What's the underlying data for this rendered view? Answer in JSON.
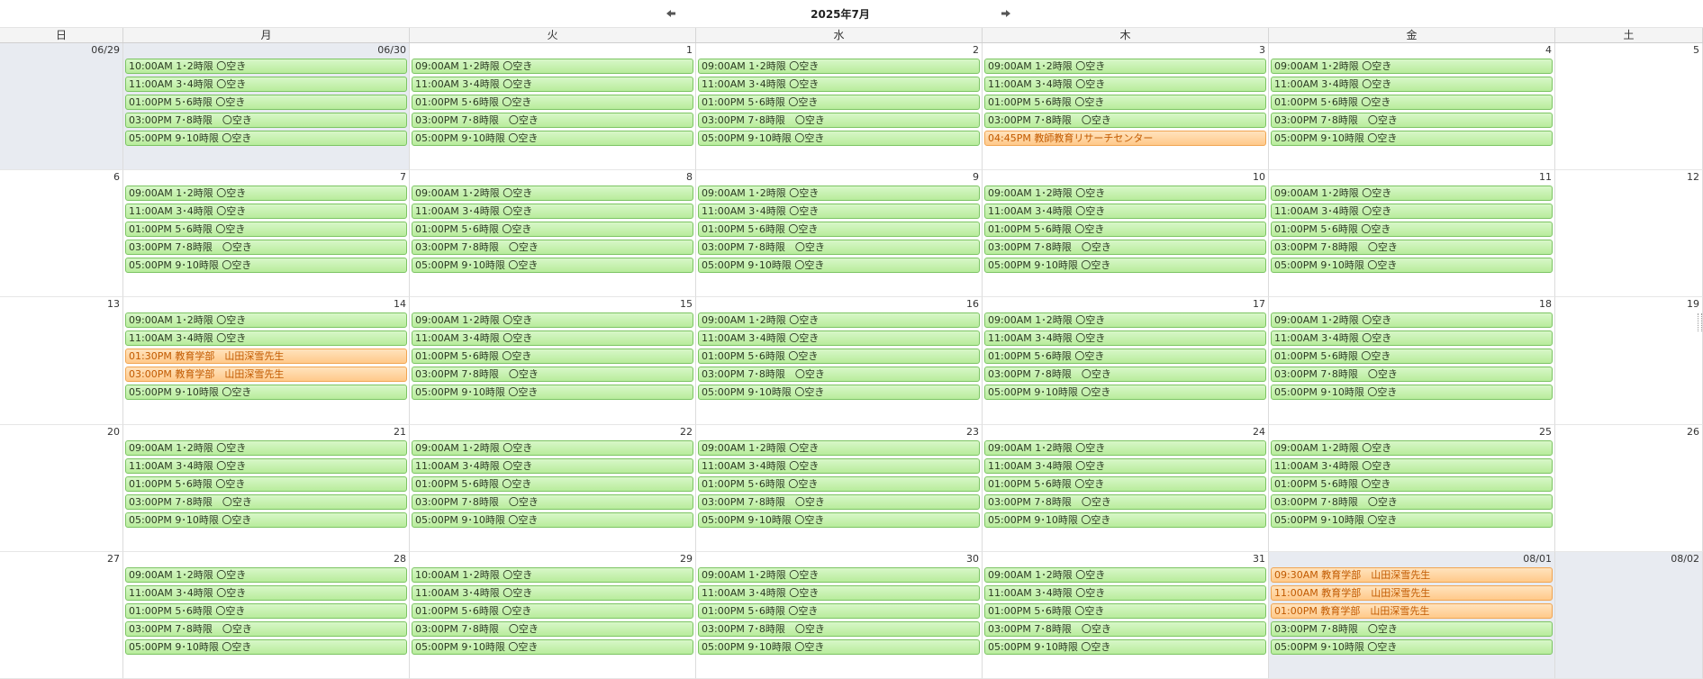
{
  "title": "2025年7月",
  "nav": {
    "prev_icon": "arrow-left-icon",
    "next_icon": "arrow-right-icon"
  },
  "colors": {
    "free_bg": "#c8f2b2",
    "free_border": "#7cc463",
    "booked_bg": "#ffd6a3",
    "booked_border": "#f0a552",
    "booked_text": "#c25a00",
    "other_month_bg": "#e8ebf1"
  },
  "day_names": [
    "日",
    "月",
    "火",
    "水",
    "木",
    "金",
    "土"
  ],
  "weeks": [
    {
      "days": [
        {
          "date": "06/29",
          "other_month": true,
          "events": []
        },
        {
          "date": "06/30",
          "other_month": true,
          "events": [
            {
              "text": "10:00AM 1･2時限 〇空き",
              "type": "free"
            },
            {
              "text": "11:00AM 3･4時限 〇空き",
              "type": "free"
            },
            {
              "text": "01:00PM 5･6時限 〇空き",
              "type": "free"
            },
            {
              "text": "03:00PM 7･8時限　〇空き",
              "type": "free"
            },
            {
              "text": "05:00PM 9･10時限 〇空き",
              "type": "free"
            }
          ]
        },
        {
          "date": "1",
          "other_month": false,
          "events": [
            {
              "text": "09:00AM 1･2時限 〇空き",
              "type": "free"
            },
            {
              "text": "11:00AM 3･4時限 〇空き",
              "type": "free"
            },
            {
              "text": "01:00PM 5･6時限 〇空き",
              "type": "free"
            },
            {
              "text": "03:00PM 7･8時限　〇空き",
              "type": "free"
            },
            {
              "text": "05:00PM 9･10時限 〇空き",
              "type": "free"
            }
          ]
        },
        {
          "date": "2",
          "other_month": false,
          "events": [
            {
              "text": "09:00AM 1･2時限 〇空き",
              "type": "free"
            },
            {
              "text": "11:00AM 3･4時限 〇空き",
              "type": "free"
            },
            {
              "text": "01:00PM 5･6時限 〇空き",
              "type": "free"
            },
            {
              "text": "03:00PM 7･8時限　〇空き",
              "type": "free"
            },
            {
              "text": "05:00PM 9･10時限 〇空き",
              "type": "free"
            }
          ]
        },
        {
          "date": "3",
          "other_month": false,
          "events": [
            {
              "text": "09:00AM 1･2時限 〇空き",
              "type": "free"
            },
            {
              "text": "11:00AM 3･4時限 〇空き",
              "type": "free"
            },
            {
              "text": "01:00PM 5･6時限 〇空き",
              "type": "free"
            },
            {
              "text": "03:00PM 7･8時限　〇空き",
              "type": "free"
            },
            {
              "text": "04:45PM 教師教育リサーチセンター",
              "type": "booked"
            }
          ]
        },
        {
          "date": "4",
          "other_month": false,
          "events": [
            {
              "text": "09:00AM 1･2時限 〇空き",
              "type": "free"
            },
            {
              "text": "11:00AM 3･4時限 〇空き",
              "type": "free"
            },
            {
              "text": "01:00PM 5･6時限 〇空き",
              "type": "free"
            },
            {
              "text": "03:00PM 7･8時限　〇空き",
              "type": "free"
            },
            {
              "text": "05:00PM 9･10時限 〇空き",
              "type": "free"
            }
          ]
        },
        {
          "date": "5",
          "other_month": false,
          "events": []
        }
      ]
    },
    {
      "days": [
        {
          "date": "6",
          "other_month": false,
          "events": []
        },
        {
          "date": "7",
          "other_month": false,
          "events": [
            {
              "text": "09:00AM 1･2時限 〇空き",
              "type": "free"
            },
            {
              "text": "11:00AM 3･4時限 〇空き",
              "type": "free"
            },
            {
              "text": "01:00PM 5･6時限 〇空き",
              "type": "free"
            },
            {
              "text": "03:00PM 7･8時限　〇空き",
              "type": "free"
            },
            {
              "text": "05:00PM 9･10時限 〇空き",
              "type": "free"
            }
          ]
        },
        {
          "date": "8",
          "other_month": false,
          "events": [
            {
              "text": "09:00AM 1･2時限 〇空き",
              "type": "free"
            },
            {
              "text": "11:00AM 3･4時限 〇空き",
              "type": "free"
            },
            {
              "text": "01:00PM 5･6時限 〇空き",
              "type": "free"
            },
            {
              "text": "03:00PM 7･8時限　〇空き",
              "type": "free"
            },
            {
              "text": "05:00PM 9･10時限 〇空き",
              "type": "free"
            }
          ]
        },
        {
          "date": "9",
          "other_month": false,
          "events": [
            {
              "text": "09:00AM 1･2時限 〇空き",
              "type": "free"
            },
            {
              "text": "11:00AM 3･4時限 〇空き",
              "type": "free"
            },
            {
              "text": "01:00PM 5･6時限 〇空き",
              "type": "free"
            },
            {
              "text": "03:00PM 7･8時限　〇空き",
              "type": "free"
            },
            {
              "text": "05:00PM 9･10時限 〇空き",
              "type": "free"
            }
          ]
        },
        {
          "date": "10",
          "other_month": false,
          "events": [
            {
              "text": "09:00AM 1･2時限 〇空き",
              "type": "free"
            },
            {
              "text": "11:00AM 3･4時限 〇空き",
              "type": "free"
            },
            {
              "text": "01:00PM 5･6時限 〇空き",
              "type": "free"
            },
            {
              "text": "03:00PM 7･8時限　〇空き",
              "type": "free"
            },
            {
              "text": "05:00PM 9･10時限 〇空き",
              "type": "free"
            }
          ]
        },
        {
          "date": "11",
          "other_month": false,
          "events": [
            {
              "text": "09:00AM 1･2時限 〇空き",
              "type": "free"
            },
            {
              "text": "11:00AM 3･4時限 〇空き",
              "type": "free"
            },
            {
              "text": "01:00PM 5･6時限 〇空き",
              "type": "free"
            },
            {
              "text": "03:00PM 7･8時限　〇空き",
              "type": "free"
            },
            {
              "text": "05:00PM 9･10時限 〇空き",
              "type": "free"
            }
          ]
        },
        {
          "date": "12",
          "other_month": false,
          "events": []
        }
      ]
    },
    {
      "days": [
        {
          "date": "13",
          "other_month": false,
          "events": []
        },
        {
          "date": "14",
          "other_month": false,
          "events": [
            {
              "text": "09:00AM 1･2時限 〇空き",
              "type": "free"
            },
            {
              "text": "11:00AM 3･4時限 〇空き",
              "type": "free"
            },
            {
              "text": "01:30PM 教育学部　山田深雪先生",
              "type": "booked"
            },
            {
              "text": "03:00PM 教育学部　山田深雪先生",
              "type": "booked"
            },
            {
              "text": "05:00PM 9･10時限 〇空き",
              "type": "free"
            }
          ]
        },
        {
          "date": "15",
          "other_month": false,
          "events": [
            {
              "text": "09:00AM 1･2時限 〇空き",
              "type": "free"
            },
            {
              "text": "11:00AM 3･4時限 〇空き",
              "type": "free"
            },
            {
              "text": "01:00PM 5･6時限 〇空き",
              "type": "free"
            },
            {
              "text": "03:00PM 7･8時限　〇空き",
              "type": "free"
            },
            {
              "text": "05:00PM 9･10時限 〇空き",
              "type": "free"
            }
          ]
        },
        {
          "date": "16",
          "other_month": false,
          "events": [
            {
              "text": "09:00AM 1･2時限 〇空き",
              "type": "free"
            },
            {
              "text": "11:00AM 3･4時限 〇空き",
              "type": "free"
            },
            {
              "text": "01:00PM 5･6時限 〇空き",
              "type": "free"
            },
            {
              "text": "03:00PM 7･8時限　〇空き",
              "type": "free"
            },
            {
              "text": "05:00PM 9･10時限 〇空き",
              "type": "free"
            }
          ]
        },
        {
          "date": "17",
          "other_month": false,
          "events": [
            {
              "text": "09:00AM 1･2時限 〇空き",
              "type": "free"
            },
            {
              "text": "11:00AM 3･4時限 〇空き",
              "type": "free"
            },
            {
              "text": "01:00PM 5･6時限 〇空き",
              "type": "free"
            },
            {
              "text": "03:00PM 7･8時限　〇空き",
              "type": "free"
            },
            {
              "text": "05:00PM 9･10時限 〇空き",
              "type": "free"
            }
          ]
        },
        {
          "date": "18",
          "other_month": false,
          "events": [
            {
              "text": "09:00AM 1･2時限 〇空き",
              "type": "free"
            },
            {
              "text": "11:00AM 3･4時限 〇空き",
              "type": "free"
            },
            {
              "text": "01:00PM 5･6時限 〇空き",
              "type": "free"
            },
            {
              "text": "03:00PM 7･8時限　〇空き",
              "type": "free"
            },
            {
              "text": "05:00PM 9･10時限 〇空き",
              "type": "free"
            }
          ]
        },
        {
          "date": "19",
          "other_month": false,
          "events": []
        }
      ]
    },
    {
      "days": [
        {
          "date": "20",
          "other_month": false,
          "events": []
        },
        {
          "date": "21",
          "other_month": false,
          "events": [
            {
              "text": "09:00AM 1･2時限 〇空き",
              "type": "free"
            },
            {
              "text": "11:00AM 3･4時限 〇空き",
              "type": "free"
            },
            {
              "text": "01:00PM 5･6時限 〇空き",
              "type": "free"
            },
            {
              "text": "03:00PM 7･8時限　〇空き",
              "type": "free"
            },
            {
              "text": "05:00PM 9･10時限 〇空き",
              "type": "free"
            }
          ]
        },
        {
          "date": "22",
          "other_month": false,
          "events": [
            {
              "text": "09:00AM 1･2時限 〇空き",
              "type": "free"
            },
            {
              "text": "11:00AM 3･4時限 〇空き",
              "type": "free"
            },
            {
              "text": "01:00PM 5･6時限 〇空き",
              "type": "free"
            },
            {
              "text": "03:00PM 7･8時限　〇空き",
              "type": "free"
            },
            {
              "text": "05:00PM 9･10時限 〇空き",
              "type": "free"
            }
          ]
        },
        {
          "date": "23",
          "other_month": false,
          "events": [
            {
              "text": "09:00AM 1･2時限 〇空き",
              "type": "free"
            },
            {
              "text": "11:00AM 3･4時限 〇空き",
              "type": "free"
            },
            {
              "text": "01:00PM 5･6時限 〇空き",
              "type": "free"
            },
            {
              "text": "03:00PM 7･8時限　〇空き",
              "type": "free"
            },
            {
              "text": "05:00PM 9･10時限 〇空き",
              "type": "free"
            }
          ]
        },
        {
          "date": "24",
          "other_month": false,
          "events": [
            {
              "text": "09:00AM 1･2時限 〇空き",
              "type": "free"
            },
            {
              "text": "11:00AM 3･4時限 〇空き",
              "type": "free"
            },
            {
              "text": "01:00PM 5･6時限 〇空き",
              "type": "free"
            },
            {
              "text": "03:00PM 7･8時限　〇空き",
              "type": "free"
            },
            {
              "text": "05:00PM 9･10時限 〇空き",
              "type": "free"
            }
          ]
        },
        {
          "date": "25",
          "other_month": false,
          "events": [
            {
              "text": "09:00AM 1･2時限 〇空き",
              "type": "free"
            },
            {
              "text": "11:00AM 3･4時限 〇空き",
              "type": "free"
            },
            {
              "text": "01:00PM 5･6時限 〇空き",
              "type": "free"
            },
            {
              "text": "03:00PM 7･8時限　〇空き",
              "type": "free"
            },
            {
              "text": "05:00PM 9･10時限 〇空き",
              "type": "free"
            }
          ]
        },
        {
          "date": "26",
          "other_month": false,
          "events": []
        }
      ]
    },
    {
      "days": [
        {
          "date": "27",
          "other_month": false,
          "events": []
        },
        {
          "date": "28",
          "other_month": false,
          "events": [
            {
              "text": "09:00AM 1･2時限 〇空き",
              "type": "free"
            },
            {
              "text": "11:00AM 3･4時限 〇空き",
              "type": "free"
            },
            {
              "text": "01:00PM 5･6時限 〇空き",
              "type": "free"
            },
            {
              "text": "03:00PM 7･8時限　〇空き",
              "type": "free"
            },
            {
              "text": "05:00PM 9･10時限 〇空き",
              "type": "free"
            }
          ]
        },
        {
          "date": "29",
          "other_month": false,
          "events": [
            {
              "text": "10:00AM 1･2時限 〇空き",
              "type": "free"
            },
            {
              "text": "11:00AM 3･4時限 〇空き",
              "type": "free"
            },
            {
              "text": "01:00PM 5･6時限 〇空き",
              "type": "free"
            },
            {
              "text": "03:00PM 7･8時限　〇空き",
              "type": "free"
            },
            {
              "text": "05:00PM 9･10時限 〇空き",
              "type": "free"
            }
          ]
        },
        {
          "date": "30",
          "other_month": false,
          "events": [
            {
              "text": "09:00AM 1･2時限 〇空き",
              "type": "free"
            },
            {
              "text": "11:00AM 3･4時限 〇空き",
              "type": "free"
            },
            {
              "text": "01:00PM 5･6時限 〇空き",
              "type": "free"
            },
            {
              "text": "03:00PM 7･8時限　〇空き",
              "type": "free"
            },
            {
              "text": "05:00PM 9･10時限 〇空き",
              "type": "free"
            }
          ]
        },
        {
          "date": "31",
          "other_month": false,
          "events": [
            {
              "text": "09:00AM 1･2時限 〇空き",
              "type": "free"
            },
            {
              "text": "11:00AM 3･4時限 〇空き",
              "type": "free"
            },
            {
              "text": "01:00PM 5･6時限 〇空き",
              "type": "free"
            },
            {
              "text": "03:00PM 7･8時限　〇空き",
              "type": "free"
            },
            {
              "text": "05:00PM 9･10時限 〇空き",
              "type": "free"
            }
          ]
        },
        {
          "date": "08/01",
          "other_month": true,
          "events": [
            {
              "text": "09:30AM 教育学部　山田深雪先生",
              "type": "booked"
            },
            {
              "text": "11:00AM 教育学部　山田深雪先生",
              "type": "booked"
            },
            {
              "text": "01:00PM 教育学部　山田深雪先生",
              "type": "booked"
            },
            {
              "text": "03:00PM 7･8時限　〇空き",
              "type": "free"
            },
            {
              "text": "05:00PM 9･10時限 〇空き",
              "type": "free"
            }
          ]
        },
        {
          "date": "08/02",
          "other_month": true,
          "events": []
        }
      ]
    }
  ]
}
